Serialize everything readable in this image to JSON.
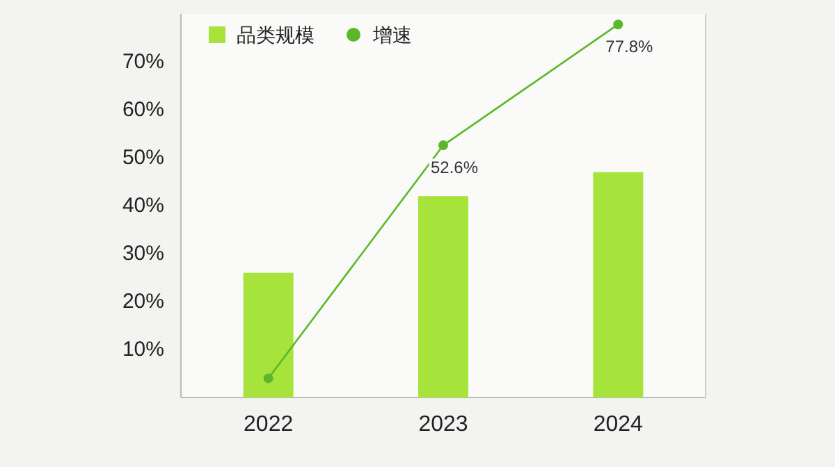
{
  "chart_data": {
    "type": "bar",
    "categories": [
      "2022",
      "2023",
      "2024"
    ],
    "series": [
      {
        "name": "品类规模",
        "color": "#a6e43c",
        "values": [
          26,
          42,
          47
        ]
      },
      {
        "name": "增速",
        "type": "line",
        "color": "#5cb82a",
        "values": [
          4,
          52.6,
          77.8
        ],
        "value_labels": [
          null,
          "52.6%",
          "77.8%"
        ]
      }
    ],
    "ylim": [
      0,
      80
    ],
    "yticks": [
      {
        "value": 10,
        "label": "10%"
      },
      {
        "value": 20,
        "label": "20%"
      },
      {
        "value": 30,
        "label": "30%"
      },
      {
        "value": 40,
        "label": "40%"
      },
      {
        "value": 50,
        "label": "50%"
      },
      {
        "value": 60,
        "label": "60%"
      },
      {
        "value": 70,
        "label": "70%"
      }
    ],
    "legend": "top left",
    "marker": "circle",
    "grid": false
  }
}
